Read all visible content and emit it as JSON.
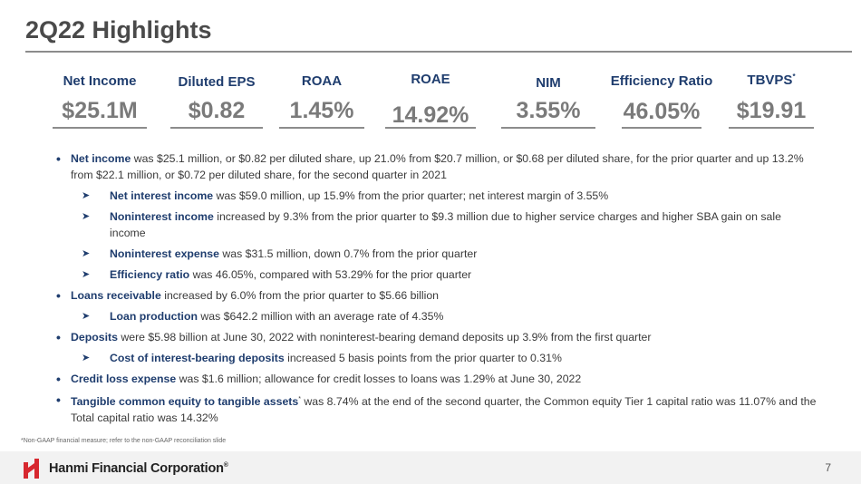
{
  "slide": {
    "title": "2Q22 Highlights",
    "page_number": "7"
  },
  "metrics": [
    {
      "label": "Net Income",
      "value": "$25.1M"
    },
    {
      "label": "Diluted EPS",
      "value": "$0.82"
    },
    {
      "label": "ROAA",
      "value": "1.45%"
    },
    {
      "label": "ROAE",
      "value": "14.92%"
    },
    {
      "label": "NIM",
      "value": "3.55%"
    },
    {
      "label": "Efficiency Ratio",
      "value": "46.05%"
    },
    {
      "label": "TBVPS",
      "label_note": "*",
      "value": "$19.91"
    }
  ],
  "bullets": {
    "net_income": {
      "kw": "Net income",
      "text": " was $25.1 million, or $0.82 per diluted share, up 21.0% from $20.7 million, or $0.68 per diluted share, for the prior quarter and up 13.2% from $22.1 million, or $0.72 per diluted share, for the second quarter in 2021"
    },
    "nii": {
      "kw": "Net interest income",
      "text": " was $59.0 million, up 15.9% from the prior quarter; net interest margin of 3.55%"
    },
    "nonint_income": {
      "kw": "Noninterest income",
      "text": " increased by 9.3% from the prior quarter to $9.3 million due to higher service charges and higher SBA gain on sale income"
    },
    "nonint_expense": {
      "kw": "Noninterest expense",
      "text": " was $31.5 million, down 0.7% from the prior quarter"
    },
    "efficiency": {
      "kw": "Efficiency ratio",
      "text": " was 46.05%, compared with 53.29% for the prior quarter"
    },
    "loans": {
      "kw": "Loans receivable",
      "text": " increased by 6.0% from the prior quarter to $5.66 billion"
    },
    "loan_prod": {
      "kw": "Loan production",
      "text": " was $642.2 million with an average rate of 4.35%"
    },
    "deposits": {
      "kw": "Deposits",
      "text": " were $5.98 billion at June 30, 2022 with noninterest-bearing demand deposits up 3.9% from the first quarter"
    },
    "cost_deposits": {
      "kw": "Cost of interest-bearing deposits",
      "text": " increased 5 basis points from the prior quarter to 0.31%"
    },
    "credit_loss": {
      "kw": "Credit loss expense",
      "text": " was $1.6 million; allowance for credit losses to loans was 1.29% at June 30, 2022"
    },
    "tce": {
      "kw": "Tangible common equity to tangible assets",
      "note": "*",
      "text": " was 8.74% at the end of the second quarter, the Common equity Tier 1 capital ratio was 11.07% and the Total capital ratio was 14.32%"
    }
  },
  "footnote": "*Non-GAAP financial measure; refer to the non-GAAP reconciliation slide",
  "footer": {
    "company": "Hanmi Financial Corporation",
    "trademark": "®",
    "logo_color": "#d7282f"
  },
  "colors": {
    "accent": "#1f3d6e",
    "value_gray": "#7a7a7a",
    "footer_bg": "#f2f2f2"
  }
}
